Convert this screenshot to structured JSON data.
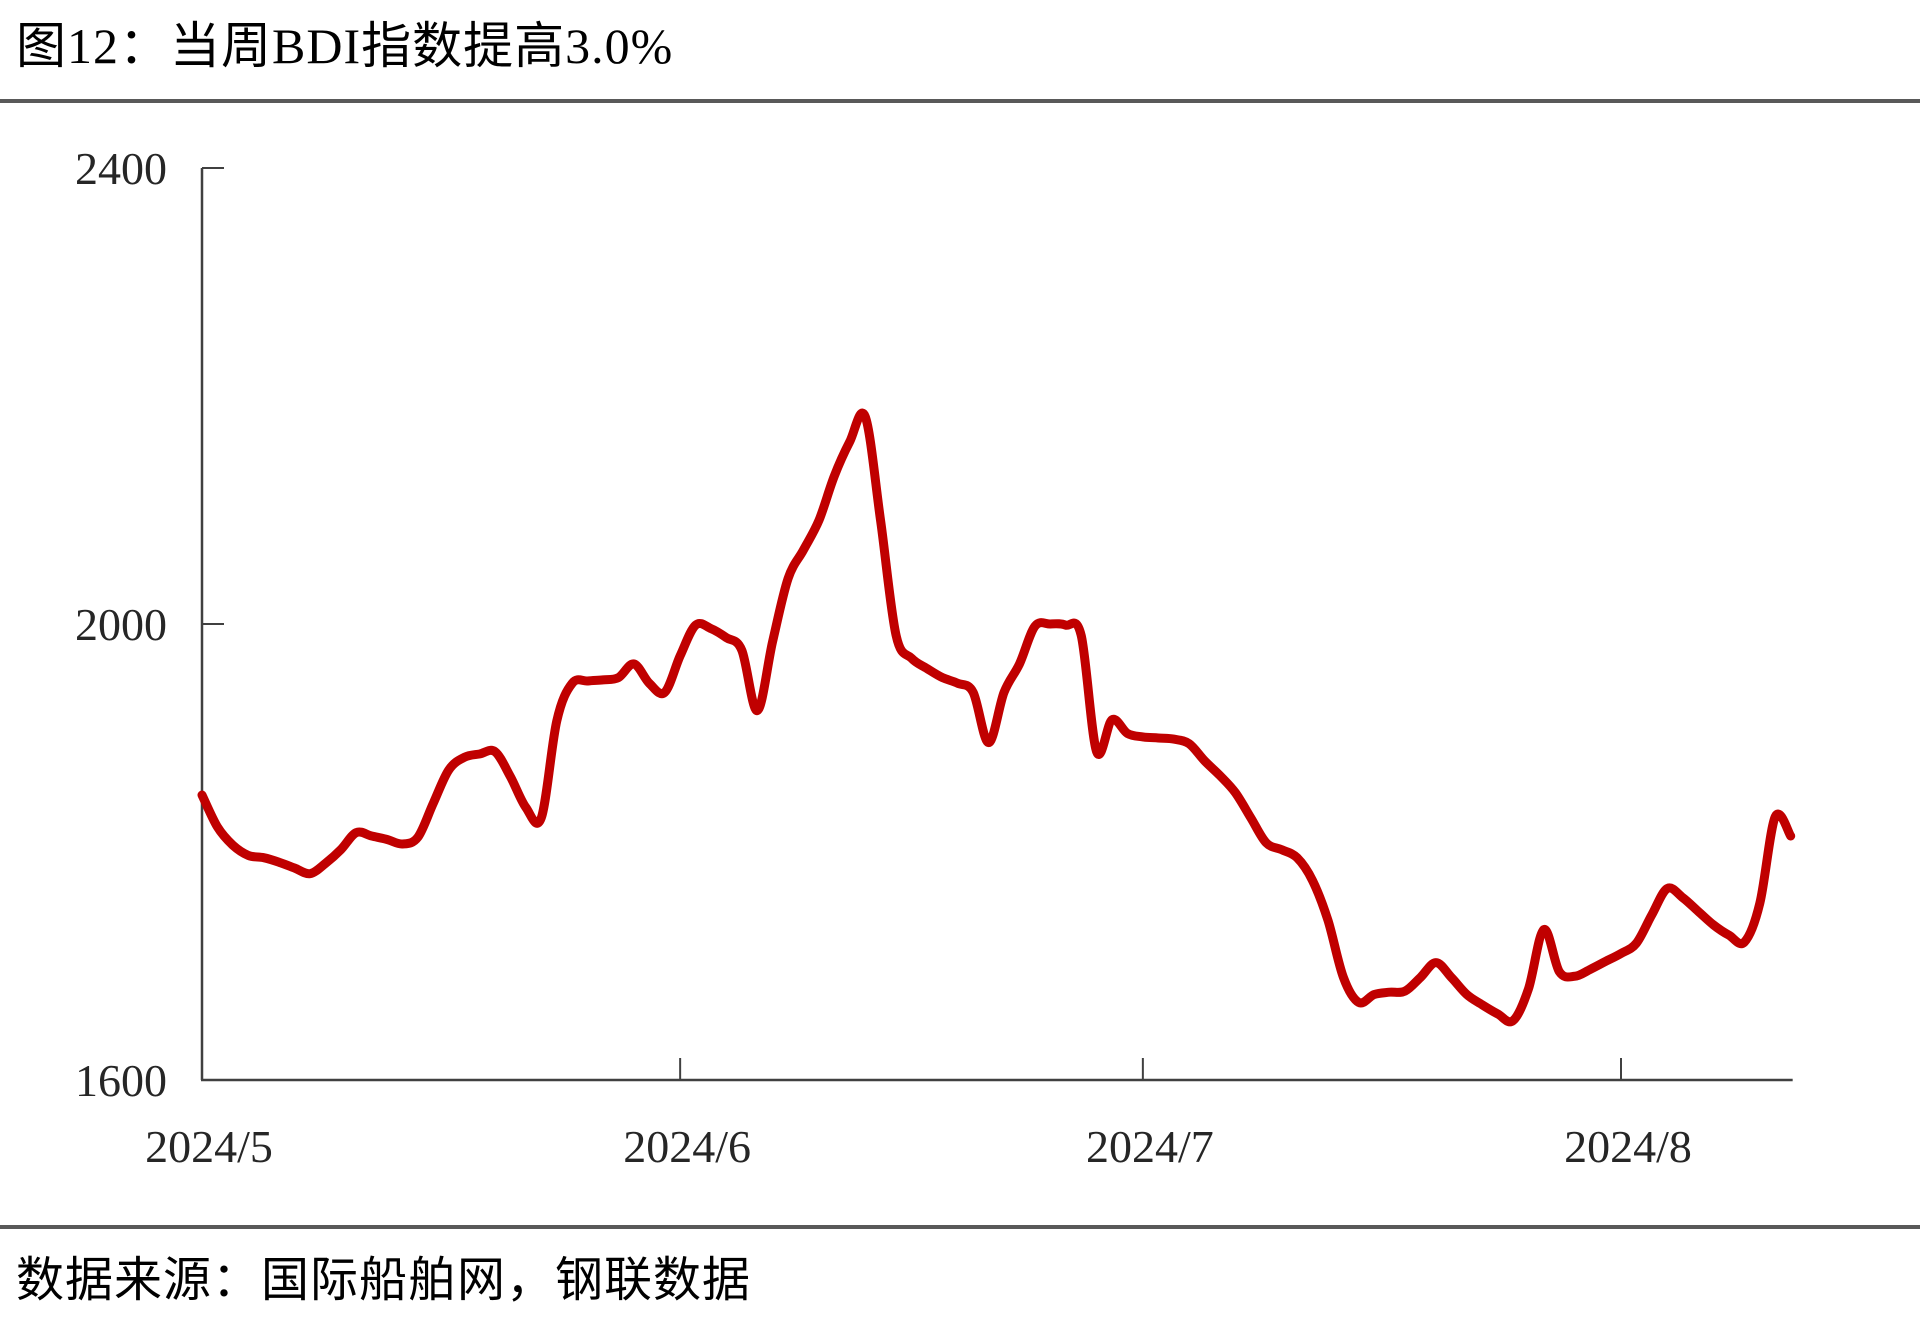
{
  "page": {
    "title": "图12：当周BDI指数提高3.0%",
    "source_note": "数据来源：国际船舶网，钢联数据"
  },
  "colors": {
    "line": "#C00000",
    "axis": "#404040",
    "tick_text": "#262626",
    "divider": "#595959"
  },
  "chart_data": {
    "type": "line",
    "title": "当周BDI指数提高3.0%",
    "series_name": "BDI指数",
    "xlabel": "",
    "ylabel": "",
    "ylim": [
      1600,
      2400
    ],
    "y_ticks": [
      1600,
      2000,
      2400
    ],
    "x_ticks": [
      {
        "label": "2024/5",
        "date": "2024/5/1"
      },
      {
        "label": "2024/6",
        "date": "2024/6/1"
      },
      {
        "label": "2024/7",
        "date": "2024/7/1"
      },
      {
        "label": "2024/8",
        "date": "2024/8/1"
      }
    ],
    "grid": false,
    "legend_position": "none",
    "x": [
      "2024/5/1",
      "2024/5/2",
      "2024/5/3",
      "2024/5/4",
      "2024/5/5",
      "2024/5/6",
      "2024/5/7",
      "2024/5/8",
      "2024/5/9",
      "2024/5/10",
      "2024/5/11",
      "2024/5/12",
      "2024/5/13",
      "2024/5/14",
      "2024/5/15",
      "2024/5/16",
      "2024/5/17",
      "2024/5/18",
      "2024/5/19",
      "2024/5/20",
      "2024/5/21",
      "2024/5/22",
      "2024/5/23",
      "2024/5/24",
      "2024/5/25",
      "2024/5/26",
      "2024/5/27",
      "2024/5/28",
      "2024/5/29",
      "2024/5/30",
      "2024/5/31",
      "2024/6/1",
      "2024/6/2",
      "2024/6/3",
      "2024/6/4",
      "2024/6/5",
      "2024/6/6",
      "2024/6/7",
      "2024/6/8",
      "2024/6/9",
      "2024/6/10",
      "2024/6/11",
      "2024/6/12",
      "2024/6/13",
      "2024/6/14",
      "2024/6/15",
      "2024/6/16",
      "2024/6/17",
      "2024/6/18",
      "2024/6/19",
      "2024/6/20",
      "2024/6/21",
      "2024/6/22",
      "2024/6/23",
      "2024/6/24",
      "2024/6/25",
      "2024/6/26",
      "2024/6/27",
      "2024/6/28",
      "2024/6/29",
      "2024/6/30",
      "2024/7/1",
      "2024/7/2",
      "2024/7/3",
      "2024/7/4",
      "2024/7/5",
      "2024/7/6",
      "2024/7/7",
      "2024/7/8",
      "2024/7/9",
      "2024/7/10",
      "2024/7/11",
      "2024/7/12",
      "2024/7/13",
      "2024/7/14",
      "2024/7/15",
      "2024/7/16",
      "2024/7/17",
      "2024/7/18",
      "2024/7/19",
      "2024/7/20",
      "2024/7/21",
      "2024/7/22",
      "2024/7/23",
      "2024/7/24",
      "2024/7/25",
      "2024/7/26",
      "2024/7/27",
      "2024/7/28",
      "2024/7/29",
      "2024/7/30",
      "2024/7/31",
      "2024/8/1",
      "2024/8/2",
      "2024/8/3",
      "2024/8/4",
      "2024/8/5",
      "2024/8/6",
      "2024/8/7",
      "2024/8/8",
      "2024/8/9",
      "2024/8/10",
      "2024/8/11",
      "2024/8/12"
    ],
    "values": [
      1850,
      1822,
      1806,
      1797,
      1795,
      1791,
      1786,
      1781,
      1790,
      1802,
      1817,
      1814,
      1811,
      1807,
      1813,
      1843,
      1872,
      1883,
      1886,
      1888,
      1866,
      1839,
      1830,
      1915,
      1948,
      1950,
      1951,
      1953,
      1965,
      1948,
      1940,
      1972,
      1999,
      1996,
      1988,
      1977,
      1924,
      1985,
      2040,
      2065,
      2091,
      2130,
      2160,
      2182,
      2090,
      1990,
      1970,
      1961,
      1953,
      1948,
      1940,
      1896,
      1940,
      1965,
      1998,
      2000,
      1999,
      1990,
      1888,
      1916,
      1904,
      1901,
      1900,
      1899,
      1895,
      1880,
      1867,
      1852,
      1830,
      1808,
      1802,
      1795,
      1775,
      1740,
      1690,
      1668,
      1675,
      1677,
      1678,
      1690,
      1703,
      1690,
      1675,
      1666,
      1658,
      1652,
      1680,
      1732,
      1695,
      1691,
      1697,
      1704,
      1711,
      1720,
      1745,
      1768,
      1760,
      1748,
      1736,
      1727,
      1721,
      1755,
      1831,
      1814
    ]
  }
}
